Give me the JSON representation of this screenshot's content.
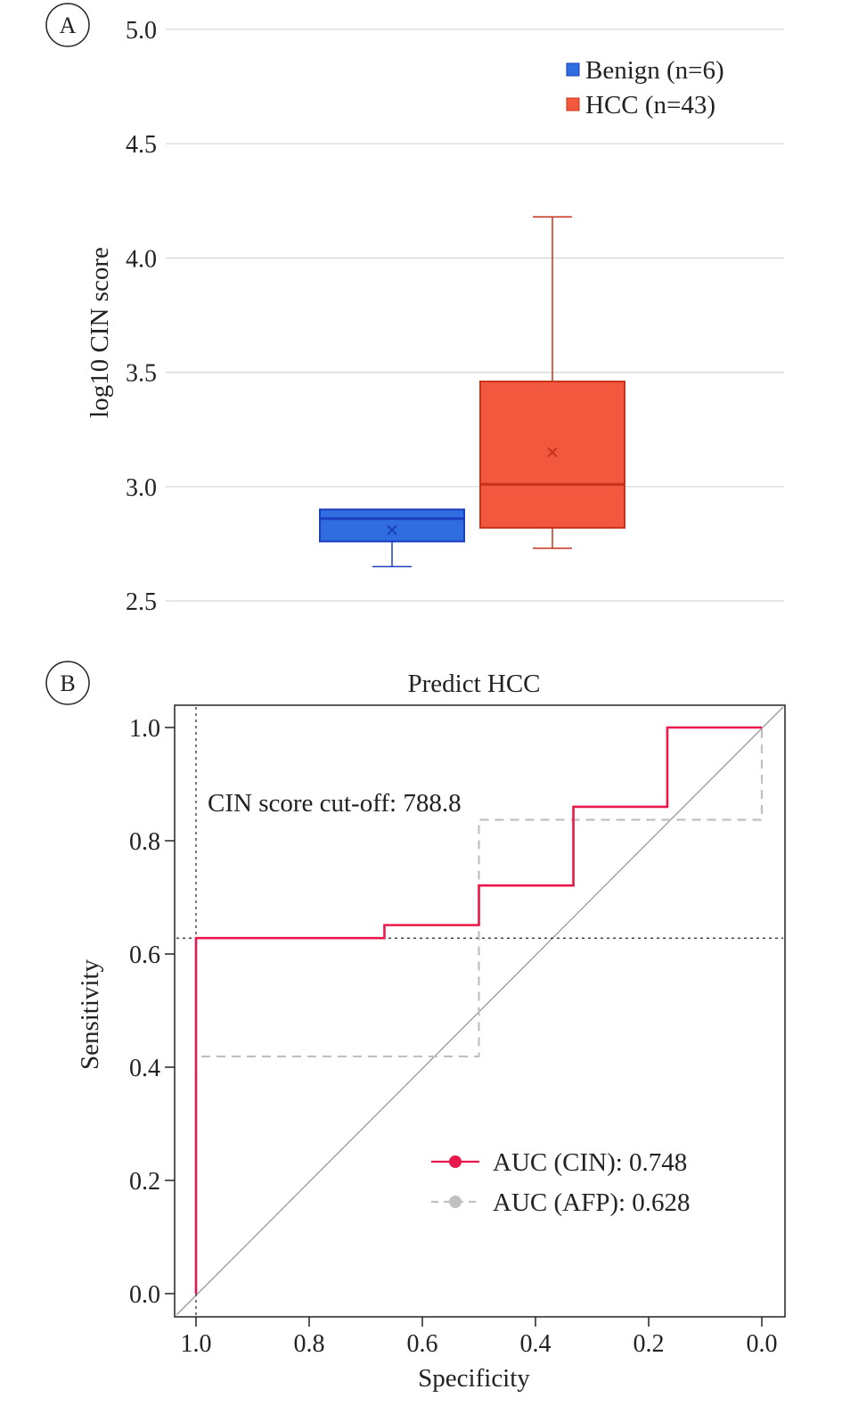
{
  "chart_data": [
    {
      "panel": "A",
      "type": "box",
      "title": "",
      "xlabel": "",
      "ylabel": "log10 CIN score",
      "ylim": [
        2.5,
        5.0
      ],
      "yticks": [
        "2.5",
        "3.0",
        "3.5",
        "4.0",
        "4.5",
        "5.0"
      ],
      "grid": "horizontal",
      "legend_position": "top-right",
      "series": [
        {
          "name": "Benign (n=6)",
          "color": "#2f6de0",
          "edge": "#1b3fc0",
          "min": 2.65,
          "q1": 2.76,
          "median": 2.86,
          "q3": 2.9,
          "max": 2.9,
          "mean": 2.81
        },
        {
          "name": "HCC (n=43)",
          "color": "#f2583e",
          "edge": "#c8321c",
          "min": 2.73,
          "q1": 2.82,
          "median": 3.01,
          "q3": 3.46,
          "max": 4.18,
          "mean": 3.15
        }
      ]
    },
    {
      "panel": "B",
      "type": "line",
      "title": "Predict HCC",
      "xlabel": "Specificity",
      "ylabel": "Sensitivity",
      "xlim": [
        1.0,
        0.0
      ],
      "ylim": [
        0.0,
        1.0
      ],
      "xticks": [
        "1.0",
        "0.8",
        "0.6",
        "0.4",
        "0.2",
        "0.0"
      ],
      "yticks": [
        "0.0",
        "0.2",
        "0.4",
        "0.6",
        "0.8",
        "1.0"
      ],
      "legend_position": "bottom-right",
      "annotation": "CIN score cut-off: 788.8",
      "cutoff": {
        "specificity": 1.0,
        "sensitivity": 0.628
      },
      "series": [
        {
          "name": "AUC (CIN): 0.748",
          "color": "#e8194a",
          "style": "solid",
          "x": [
            1.0,
            1.0,
            0.667,
            0.667,
            0.5,
            0.5,
            0.333,
            0.333,
            0.167,
            0.167,
            0.0
          ],
          "y": [
            0.0,
            0.628,
            0.628,
            0.651,
            0.651,
            0.721,
            0.721,
            0.86,
            0.86,
            1.0,
            1.0
          ]
        },
        {
          "name": "AUC (AFP): 0.628",
          "color": "#c0c0c0",
          "style": "dashed",
          "x": [
            1.0,
            1.0,
            0.5,
            0.5,
            0.0,
            0.0
          ],
          "y": [
            0.0,
            0.419,
            0.419,
            0.837,
            0.837,
            1.0
          ]
        }
      ]
    }
  ]
}
